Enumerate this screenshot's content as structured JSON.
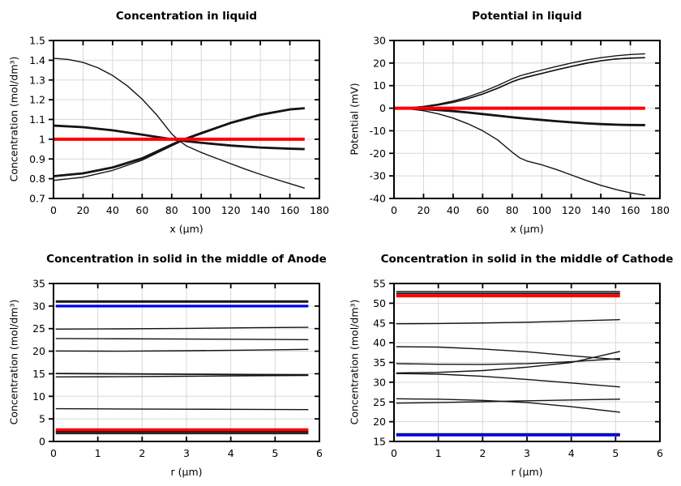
{
  "page": {
    "background": "#ffffff"
  },
  "colors": {
    "baseline_red": "#ff0000",
    "highlight_blue": "#0000ee",
    "curve_black": "#141414",
    "gridline_gray": "#d8d8d8"
  },
  "chart_data": [
    {
      "type": "line",
      "title": "Concentration in liquid",
      "xlabel": "x (μm)",
      "ylabel": "Concentration (mol/dm³)",
      "xlim": [
        0,
        180
      ],
      "ylim": [
        0.7,
        1.5
      ],
      "xticks": [
        0,
        20,
        40,
        60,
        80,
        100,
        120,
        140,
        160,
        180
      ],
      "yticks": [
        0.7,
        0.8,
        0.9,
        1,
        1.1,
        1.2,
        1.3,
        1.4,
        1.5
      ],
      "grid": true,
      "series": [
        {
          "name": "steep-decline",
          "color": "#141414",
          "width": 1.4,
          "x": [
            0,
            10,
            20,
            30,
            40,
            50,
            60,
            70,
            80,
            85,
            90,
            100,
            110,
            120,
            130,
            140,
            150,
            160,
            170
          ],
          "y": [
            1.41,
            1.404,
            1.389,
            1.362,
            1.323,
            1.27,
            1.203,
            1.122,
            1.027,
            0.993,
            0.966,
            0.933,
            0.904,
            0.876,
            0.848,
            0.822,
            0.798,
            0.775,
            0.752
          ]
        },
        {
          "name": "upper-thick-decline",
          "color": "#141414",
          "width": 2.8,
          "x": [
            0,
            20,
            40,
            60,
            80,
            90,
            100,
            120,
            140,
            160,
            170
          ],
          "y": [
            1.069,
            1.061,
            1.045,
            1.023,
            1.0,
            0.99,
            0.982,
            0.968,
            0.958,
            0.952,
            0.95
          ]
        },
        {
          "name": "lower-thick-rise",
          "color": "#141414",
          "width": 2.8,
          "x": [
            0,
            20,
            40,
            60,
            80,
            85,
            90,
            100,
            120,
            140,
            160,
            170
          ],
          "y": [
            0.813,
            0.827,
            0.857,
            0.903,
            0.972,
            0.989,
            1.004,
            1.031,
            1.083,
            1.124,
            1.151,
            1.157
          ]
        },
        {
          "name": "lower-thin-rise",
          "color": "#141414",
          "width": 1.4,
          "x": [
            0,
            20,
            40,
            60,
            80,
            85,
            90,
            100,
            120,
            140,
            160,
            170
          ],
          "y": [
            0.791,
            0.808,
            0.842,
            0.894,
            0.966,
            0.984,
            1.0,
            1.027,
            1.08,
            1.121,
            1.149,
            1.155
          ]
        },
        {
          "name": "initial-baseline",
          "color": "#ff0000",
          "width": 4,
          "x": [
            0,
            170
          ],
          "y": [
            1,
            1
          ]
        }
      ]
    },
    {
      "type": "line",
      "title": "Potential in liquid",
      "xlabel": "x (μm)",
      "ylabel": "Potential (mV)",
      "xlim": [
        0,
        180
      ],
      "ylim": [
        -40,
        30
      ],
      "xticks": [
        0,
        20,
        40,
        60,
        80,
        100,
        120,
        140,
        160,
        180
      ],
      "yticks": [
        -40,
        -30,
        -20,
        -10,
        0,
        10,
        20,
        30
      ],
      "grid": true,
      "series": [
        {
          "name": "top-rise",
          "color": "#141414",
          "width": 1.4,
          "x": [
            0,
            10,
            20,
            30,
            40,
            50,
            60,
            70,
            80,
            85,
            90,
            100,
            110,
            120,
            130,
            140,
            150,
            160,
            170
          ],
          "y": [
            0,
            0.2,
            0.8,
            1.8,
            3.2,
            5,
            7.3,
            10,
            13,
            14.3,
            15.2,
            16.9,
            18.5,
            20,
            21.3,
            22.4,
            23.2,
            23.8,
            24.1
          ]
        },
        {
          "name": "second-rise",
          "color": "#141414",
          "width": 1.7,
          "x": [
            0,
            10,
            20,
            30,
            40,
            50,
            60,
            70,
            80,
            85,
            90,
            100,
            110,
            120,
            130,
            140,
            150,
            160,
            170
          ],
          "y": [
            0,
            0.15,
            0.6,
            1.4,
            2.6,
            4.2,
            6.3,
            8.8,
            11.7,
            12.9,
            13.8,
            15.4,
            17,
            18.5,
            19.9,
            21,
            21.8,
            22.2,
            22.4
          ]
        },
        {
          "name": "mid-thick-decline",
          "color": "#141414",
          "width": 2.8,
          "x": [
            0,
            10,
            20,
            30,
            40,
            50,
            60,
            70,
            80,
            85,
            90,
            100,
            110,
            120,
            130,
            140,
            150,
            160,
            170
          ],
          "y": [
            0,
            -0.1,
            -0.4,
            -0.8,
            -1.3,
            -1.9,
            -2.6,
            -3.3,
            -4,
            -4.35,
            -4.65,
            -5.2,
            -5.75,
            -6.25,
            -6.7,
            -7.05,
            -7.3,
            -7.45,
            -7.5
          ]
        },
        {
          "name": "steep-decline",
          "color": "#141414",
          "width": 1.4,
          "x": [
            0,
            10,
            20,
            30,
            40,
            50,
            60,
            70,
            80,
            85,
            90,
            100,
            110,
            120,
            130,
            140,
            150,
            160,
            170
          ],
          "y": [
            0,
            -0.3,
            -1.1,
            -2.5,
            -4.4,
            -6.9,
            -10,
            -14,
            -19.5,
            -22,
            -23.4,
            -25.1,
            -27.2,
            -29.6,
            -32,
            -34.2,
            -36,
            -37.5,
            -38.6
          ]
        },
        {
          "name": "initial-baseline",
          "color": "#ff0000",
          "width": 4,
          "x": [
            0,
            170
          ],
          "y": [
            0,
            0
          ]
        }
      ]
    },
    {
      "type": "line",
      "title": "Concentration in solid in the middle of Anode",
      "xlabel": "r (μm)",
      "ylabel": "Concentration (mol/dm³)",
      "xlim": [
        0,
        6
      ],
      "ylim": [
        0,
        35
      ],
      "xticks": [
        0,
        1,
        2,
        3,
        4,
        5,
        6
      ],
      "yticks": [
        0,
        5,
        10,
        15,
        20,
        25,
        30,
        35
      ],
      "grid": true,
      "series": [
        {
          "name": "flat-31",
          "color": "#141414",
          "width": 3,
          "x": [
            0.05,
            5.75
          ],
          "y": [
            31,
            31
          ]
        },
        {
          "name": "blue-flat-30",
          "color": "#0000ee",
          "width": 3.2,
          "x": [
            0.05,
            5.75
          ],
          "y": [
            30,
            30
          ]
        },
        {
          "name": "flat-25",
          "color": "#141414",
          "width": 1.4,
          "x": [
            0.05,
            1.5,
            3,
            4.5,
            5.75
          ],
          "y": [
            24.9,
            24.95,
            25.05,
            25.2,
            25.3
          ]
        },
        {
          "name": "flat-23",
          "color": "#141414",
          "width": 1.4,
          "x": [
            0.05,
            1.5,
            3,
            4.5,
            5.75
          ],
          "y": [
            22.8,
            22.75,
            22.7,
            22.62,
            22.55
          ]
        },
        {
          "name": "flat-20",
          "color": "#141414",
          "width": 1.4,
          "x": [
            0.05,
            1.5,
            3,
            4.5,
            5.75
          ],
          "y": [
            20.05,
            20.0,
            20.1,
            20.25,
            20.4
          ]
        },
        {
          "name": "pair-15-upper",
          "color": "#141414",
          "width": 1.8,
          "x": [
            0.05,
            1.5,
            3,
            4.5,
            5.75
          ],
          "y": [
            15.05,
            14.98,
            14.9,
            14.8,
            14.75
          ]
        },
        {
          "name": "pair-15-lower",
          "color": "#141414",
          "width": 1.4,
          "x": [
            0.05,
            1.5,
            3,
            4.5,
            5.75
          ],
          "y": [
            14.3,
            14.35,
            14.45,
            14.55,
            14.62
          ]
        },
        {
          "name": "flat-7",
          "color": "#141414",
          "width": 1.4,
          "x": [
            0.05,
            1.5,
            3,
            4.5,
            5.75
          ],
          "y": [
            7.25,
            7.2,
            7.15,
            7.1,
            7.05
          ]
        },
        {
          "name": "red-flat-2p5",
          "color": "#ff0000",
          "width": 4,
          "x": [
            0.05,
            5.75
          ],
          "y": [
            2.55,
            2.55
          ]
        },
        {
          "name": "flat-2p15",
          "color": "#141414",
          "width": 1.2,
          "x": [
            0.05,
            5.75
          ],
          "y": [
            2.15,
            2.15
          ]
        },
        {
          "name": "flat-1p95",
          "color": "#141414",
          "width": 1.2,
          "x": [
            0.05,
            5.75
          ],
          "y": [
            1.95,
            1.95
          ]
        },
        {
          "name": "flat-1p7",
          "color": "#141414",
          "width": 1.2,
          "x": [
            0.05,
            5.75
          ],
          "y": [
            1.7,
            1.7
          ]
        }
      ]
    },
    {
      "type": "line",
      "title": "Concentration in solid in the middle of Cathode",
      "xlabel": "r (μm)",
      "ylabel": "Concentration (mol/dm³)",
      "xlim": [
        0,
        6
      ],
      "ylim": [
        15,
        55
      ],
      "xticks": [
        0,
        1,
        2,
        3,
        4,
        5,
        6
      ],
      "yticks": [
        15,
        20,
        25,
        30,
        35,
        40,
        45,
        50,
        55
      ],
      "grid": true,
      "series": [
        {
          "name": "flat-53",
          "color": "#141414",
          "width": 1.6,
          "x": [
            0.05,
            5.1
          ],
          "y": [
            52.95,
            52.95
          ]
        },
        {
          "name": "flat-52p5",
          "color": "#141414",
          "width": 1.6,
          "x": [
            0.05,
            5.1
          ],
          "y": [
            52.5,
            52.5
          ]
        },
        {
          "name": "red-flat-52",
          "color": "#ff0000",
          "width": 4,
          "x": [
            0.05,
            5.1
          ],
          "y": [
            51.9,
            51.9
          ]
        },
        {
          "name": "rise-45",
          "color": "#141414",
          "width": 1.4,
          "x": [
            0.05,
            1,
            2,
            3,
            4,
            5.1
          ],
          "y": [
            44.8,
            44.85,
            45.0,
            45.2,
            45.5,
            45.85
          ]
        },
        {
          "name": "decline-39",
          "color": "#141414",
          "width": 1.4,
          "x": [
            0.05,
            1,
            2,
            3,
            4,
            5.1
          ],
          "y": [
            39.0,
            38.9,
            38.4,
            37.7,
            36.7,
            35.7
          ]
        },
        {
          "name": "dip-rise-35",
          "color": "#141414",
          "width": 1.4,
          "x": [
            0.05,
            1,
            2,
            3,
            4,
            5.1
          ],
          "y": [
            34.7,
            34.55,
            34.5,
            34.7,
            35.2,
            36.0
          ]
        },
        {
          "name": "rise-32-to-38",
          "color": "#141414",
          "width": 1.4,
          "x": [
            0.05,
            1,
            2,
            3,
            4,
            5.1
          ],
          "y": [
            32.35,
            32.5,
            32.95,
            33.8,
            35.0,
            37.8
          ]
        },
        {
          "name": "decline-32-to-29",
          "color": "#141414",
          "width": 1.4,
          "x": [
            0.05,
            1,
            2,
            3,
            4,
            5.1
          ],
          "y": [
            32.2,
            32.05,
            31.5,
            30.7,
            29.8,
            28.8
          ]
        },
        {
          "name": "decline-26-to-22",
          "color": "#141414",
          "width": 1.4,
          "x": [
            0.05,
            1,
            2,
            3,
            4,
            5.1
          ],
          "y": [
            25.8,
            25.7,
            25.4,
            24.85,
            23.8,
            22.4
          ]
        },
        {
          "name": "rise-25-to-26",
          "color": "#141414",
          "width": 1.4,
          "x": [
            0.05,
            1,
            2,
            3,
            4,
            5.1
          ],
          "y": [
            24.7,
            24.85,
            25.05,
            25.3,
            25.5,
            25.72
          ]
        },
        {
          "name": "flat-17",
          "color": "#141414",
          "width": 1.4,
          "x": [
            0.05,
            5.1
          ],
          "y": [
            16.95,
            16.95
          ]
        },
        {
          "name": "blue-flat-16p6",
          "color": "#0000ee",
          "width": 3.2,
          "x": [
            0.05,
            5.1
          ],
          "y": [
            16.6,
            16.6
          ]
        }
      ]
    }
  ]
}
